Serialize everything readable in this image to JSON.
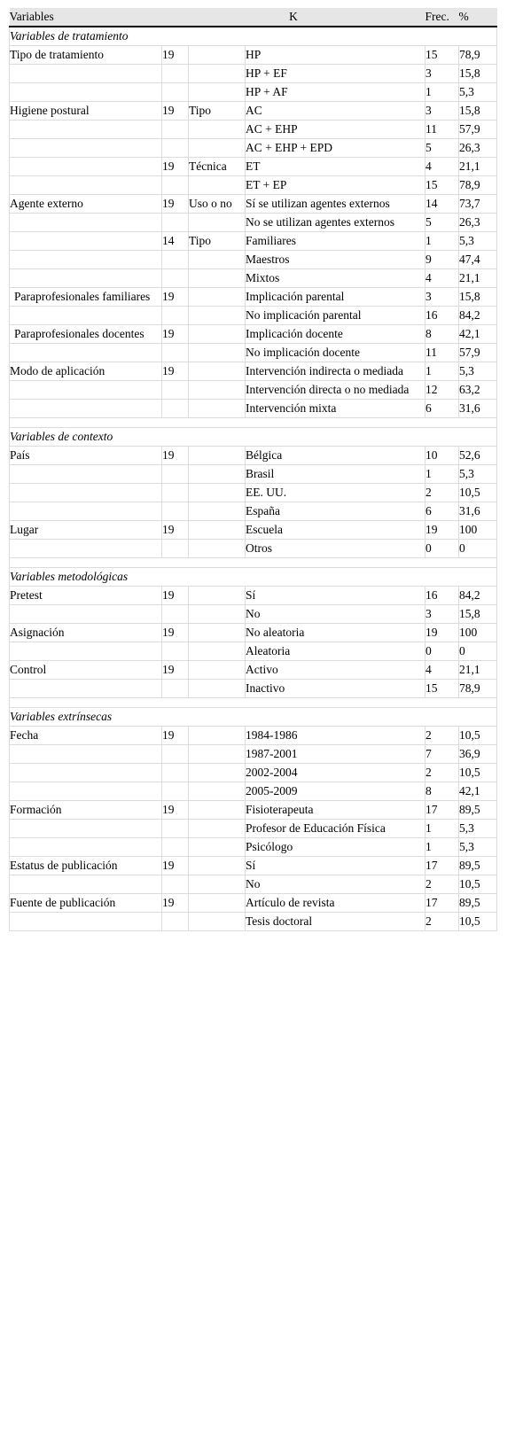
{
  "header": {
    "variables": "Variables",
    "k": "K",
    "frec": "Frec.",
    "pct": "%"
  },
  "sections": [
    {
      "title": "Variables de tratamiento",
      "rows": [
        {
          "var": "Tipo de tratamiento",
          "k": "19",
          "sub": "",
          "cat": "HP",
          "frec": "15",
          "pct": "78,9"
        },
        {
          "var": "",
          "k": "",
          "sub": "",
          "cat": "HP + EF",
          "frec": "3",
          "pct": "15,8"
        },
        {
          "var": "",
          "k": "",
          "sub": "",
          "cat": "HP + AF",
          "frec": "1",
          "pct": "5,3"
        },
        {
          "var": "Higiene postural",
          "k": "19",
          "sub": "Tipo",
          "cat": "AC",
          "frec": "3",
          "pct": "15,8"
        },
        {
          "var": "",
          "k": "",
          "sub": "",
          "cat": "AC + EHP",
          "frec": "11",
          "pct": "57,9"
        },
        {
          "var": "",
          "k": "",
          "sub": "",
          "cat": "AC + EHP + EPD",
          "frec": "5",
          "pct": "26,3"
        },
        {
          "var": "",
          "k": "19",
          "sub": "Técnica",
          "cat": "ET",
          "frec": "4",
          "pct": "21,1"
        },
        {
          "var": "",
          "k": "",
          "sub": "",
          "cat": "ET + EP",
          "frec": "15",
          "pct": "78,9"
        },
        {
          "var": "Agente externo",
          "k": "19",
          "sub": "Uso o no",
          "cat": "Sí se utilizan agentes externos",
          "frec": "14",
          "pct": "73,7"
        },
        {
          "var": "",
          "k": "",
          "sub": "",
          "cat": "No se utilizan agentes externos",
          "frec": "5",
          "pct": "26,3"
        },
        {
          "var": "",
          "k": "14",
          "sub": "Tipo",
          "cat": "Familiares",
          "frec": "1",
          "pct": "5,3"
        },
        {
          "var": "",
          "k": "",
          "sub": "",
          "cat": "Maestros",
          "frec": "9",
          "pct": "47,4"
        },
        {
          "var": "",
          "k": "",
          "sub": "",
          "cat": "Mixtos",
          "frec": "4",
          "pct": "21,1"
        },
        {
          "var": "Paraprofesionales familiares",
          "k": "19",
          "sub": "",
          "cat": "Implicación parental",
          "frec": "3",
          "pct": "15,8"
        },
        {
          "var": "",
          "k": "",
          "sub": "",
          "cat": "No implicación parental",
          "frec": "16",
          "pct": "84,2"
        },
        {
          "var": "Paraprofesionales docentes",
          "k": "19",
          "sub": "",
          "cat": "Implicación docente",
          "frec": "8",
          "pct": "42,1"
        },
        {
          "var": "",
          "k": "",
          "sub": "",
          "cat": "No implicación docente",
          "frec": "11",
          "pct": "57,9"
        },
        {
          "var": "Modo de aplicación",
          "k": "19",
          "sub": "",
          "cat": "Intervención indirecta o mediada",
          "frec": "1",
          "pct": "5,3"
        },
        {
          "var": "",
          "k": "",
          "sub": "",
          "cat": "Intervención directa o no mediada",
          "frec": "12",
          "pct": "63,2"
        },
        {
          "var": "",
          "k": "",
          "sub": "",
          "cat": "Intervención mixta",
          "frec": "6",
          "pct": "31,6"
        }
      ]
    },
    {
      "title": "Variables de contexto",
      "rows": [
        {
          "var": "País",
          "k": "19",
          "sub": "",
          "cat": "Bélgica",
          "frec": "10",
          "pct": "52,6"
        },
        {
          "var": "",
          "k": "",
          "sub": "",
          "cat": "Brasil",
          "frec": "1",
          "pct": "5,3"
        },
        {
          "var": "",
          "k": "",
          "sub": "",
          "cat": "EE. UU.",
          "frec": "2",
          "pct": "10,5"
        },
        {
          "var": "",
          "k": "",
          "sub": "",
          "cat": "España",
          "frec": "6",
          "pct": "31,6"
        },
        {
          "var": "Lugar",
          "k": "19",
          "sub": "",
          "cat": "Escuela",
          "frec": "19",
          "pct": "100"
        },
        {
          "var": "",
          "k": "",
          "sub": "",
          "cat": "Otros",
          "frec": "0",
          "pct": "0"
        }
      ]
    },
    {
      "title": "Variables metodológicas",
      "rows": [
        {
          "var": "Pretest",
          "k": "19",
          "sub": "",
          "cat": "Sí",
          "frec": "16",
          "pct": "84,2"
        },
        {
          "var": "",
          "k": "",
          "sub": "",
          "cat": "No",
          "frec": "3",
          "pct": "15,8"
        },
        {
          "var": "Asignación",
          "k": "19",
          "sub": "",
          "cat": "No aleatoria",
          "frec": "19",
          "pct": "100"
        },
        {
          "var": "",
          "k": "",
          "sub": "",
          "cat": "Aleatoria",
          "frec": "0",
          "pct": "0"
        },
        {
          "var": "Control",
          "k": "19",
          "sub": "",
          "cat": "Activo",
          "frec": "4",
          "pct": "21,1"
        },
        {
          "var": "",
          "k": "",
          "sub": "",
          "cat": "Inactivo",
          "frec": "15",
          "pct": "78,9"
        }
      ]
    },
    {
      "title": "Variables extrínsecas",
      "rows": [
        {
          "var": "Fecha",
          "k": "19",
          "sub": "",
          "cat": "1984-1986",
          "frec": "2",
          "pct": "10,5"
        },
        {
          "var": "",
          "k": "",
          "sub": "",
          "cat": "1987-2001",
          "frec": "7",
          "pct": "36,9"
        },
        {
          "var": "",
          "k": "",
          "sub": "",
          "cat": "2002-2004",
          "frec": "2",
          "pct": "10,5"
        },
        {
          "var": "",
          "k": "",
          "sub": "",
          "cat": "2005-2009",
          "frec": "8",
          "pct": "42,1"
        },
        {
          "var": "Formación",
          "k": "19",
          "sub": "",
          "cat": "Fisioterapeuta",
          "frec": "17",
          "pct": "89,5"
        },
        {
          "var": "",
          "k": "",
          "sub": "",
          "cat": "Profesor de Educación Física",
          "frec": "1",
          "pct": "5,3"
        },
        {
          "var": "",
          "k": "",
          "sub": "",
          "cat": "Psicólogo",
          "frec": "1",
          "pct": "5,3"
        },
        {
          "var": "Estatus de publicación",
          "k": "19",
          "sub": "",
          "cat": "Sí",
          "frec": "17",
          "pct": "89,5"
        },
        {
          "var": "",
          "k": "",
          "sub": "",
          "cat": "No",
          "frec": "2",
          "pct": "10,5"
        },
        {
          "var": "Fuente de publicación",
          "k": "19",
          "sub": "",
          "cat": "Artículo de revista",
          "frec": "17",
          "pct": "89,5"
        },
        {
          "var": "",
          "k": "",
          "sub": "",
          "cat": "Tesis doctoral",
          "frec": "2",
          "pct": "10,5"
        }
      ]
    }
  ]
}
